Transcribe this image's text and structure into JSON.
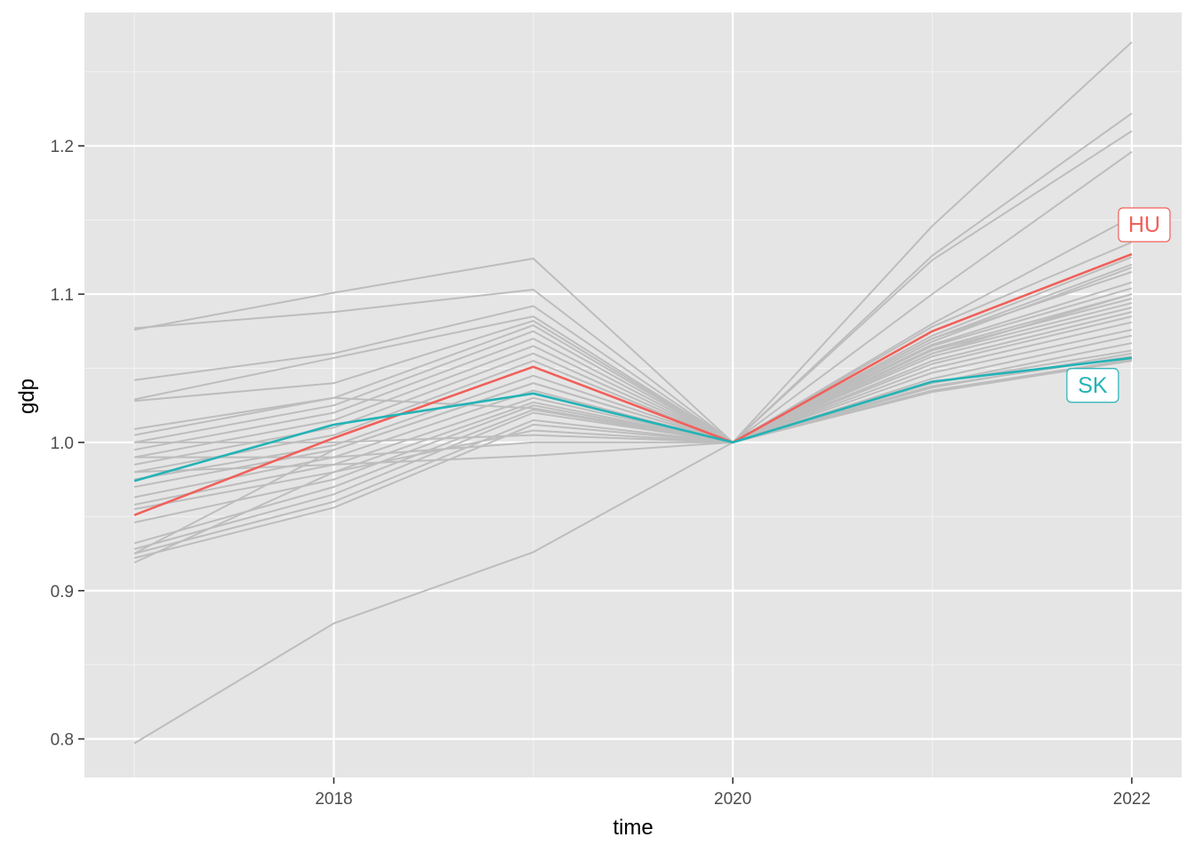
{
  "chart_data": {
    "type": "line",
    "title": "",
    "xlabel": "time",
    "ylabel": "gdp",
    "x": [
      2017,
      2018,
      2019,
      2020,
      2021,
      2022
    ],
    "xlim": [
      2016.75,
      2022.25
    ],
    "ylim": [
      0.774,
      1.29
    ],
    "x_ticks": [
      2018,
      2020,
      2022
    ],
    "x_tick_labels": [
      "2018",
      "2020",
      "2022"
    ],
    "y_ticks": [
      0.8,
      0.9,
      1.0,
      1.1,
      1.2
    ],
    "y_tick_labels": [
      "0.8",
      "0.9",
      "1.0",
      "1.1",
      "1.2"
    ],
    "grid": true,
    "legend": "none",
    "colors": {
      "panel": "#e5e5e5",
      "grid_major": "#ffffff",
      "grid_minor": "#f2f2f2",
      "background_series": "#bdbdbd",
      "HU": "#f0605a",
      "SK": "#23b3b6"
    },
    "highlight_series": [
      {
        "name": "HU",
        "color": "#f0605a",
        "values": [
          0.951,
          1.003,
          1.051,
          1.0,
          1.075,
          1.127
        ]
      },
      {
        "name": "SK",
        "color": "#23b3b6",
        "values": [
          0.974,
          1.012,
          1.033,
          1.0,
          1.041,
          1.057
        ]
      }
    ],
    "series": [
      {
        "values": [
          0.797,
          0.878,
          0.926,
          1.0,
          1.146,
          1.27
        ]
      },
      {
        "values": [
          1.076,
          1.101,
          1.124,
          1.0,
          1.126,
          1.222
        ]
      },
      {
        "values": [
          1.077,
          1.088,
          1.103,
          1.0,
          1.123,
          1.21
        ]
      },
      {
        "values": [
          1.042,
          1.06,
          1.092,
          1.0,
          1.1,
          1.196
        ]
      },
      {
        "values": [
          1.029,
          1.057,
          1.085,
          1.0,
          1.08,
          1.152
        ]
      },
      {
        "values": [
          1.028,
          1.04,
          1.082,
          1.0,
          1.078,
          1.135
        ]
      },
      {
        "values": [
          1.009,
          1.03,
          1.079,
          1.0,
          1.072,
          1.125
        ]
      },
      {
        "values": [
          1.0,
          1.025,
          1.075,
          1.0,
          1.07,
          1.12
        ]
      },
      {
        "values": [
          0.995,
          1.02,
          1.07,
          1.0,
          1.068,
          1.118
        ]
      },
      {
        "values": [
          0.99,
          1.015,
          1.065,
          1.0,
          1.066,
          1.108
        ]
      },
      {
        "values": [
          0.985,
          1.01,
          1.06,
          1.0,
          1.065,
          1.104
        ]
      },
      {
        "values": [
          0.98,
          1.005,
          1.055,
          1.0,
          1.063,
          1.1
        ]
      },
      {
        "values": [
          0.975,
          0.998,
          1.045,
          1.0,
          1.062,
          1.097
        ]
      },
      {
        "values": [
          0.97,
          0.995,
          1.04,
          1.0,
          1.06,
          1.094
        ]
      },
      {
        "values": [
          0.963,
          0.99,
          1.035,
          1.0,
          1.058,
          1.091
        ]
      },
      {
        "values": [
          0.958,
          0.985,
          1.03,
          1.0,
          1.055,
          1.088
        ]
      },
      {
        "values": [
          0.955,
          0.98,
          1.027,
          1.0,
          1.053,
          1.085
        ]
      },
      {
        "values": [
          0.946,
          0.975,
          1.025,
          1.0,
          1.05,
          1.081
        ]
      },
      {
        "values": [
          0.932,
          0.97,
          1.022,
          1.0,
          1.047,
          1.076
        ]
      },
      {
        "values": [
          0.928,
          0.965,
          1.02,
          1.0,
          1.043,
          1.072
        ]
      },
      {
        "values": [
          0.925,
          0.96,
          1.015,
          1.0,
          1.04,
          1.067
        ]
      },
      {
        "values": [
          0.922,
          0.956,
          1.012,
          1.0,
          1.037,
          1.06
        ]
      },
      {
        "values": [
          0.919,
          0.98,
          1.008,
          1.0,
          1.035,
          1.056
        ]
      },
      {
        "values": [
          1.0,
          1.0,
          1.005,
          1.0,
          1.034,
          1.055
        ]
      },
      {
        "values": [
          0.99,
          0.99,
          1.0,
          1.0,
          1.038,
          1.058
        ]
      },
      {
        "values": [
          0.98,
          0.985,
          0.991,
          1.0,
          1.04,
          1.062
        ]
      },
      {
        "values": [
          1.005,
          1.03,
          1.023,
          1.0,
          1.06,
          1.1
        ]
      },
      {
        "values": [
          0.925,
          0.995,
          1.04,
          1.0,
          1.07,
          1.115
        ]
      }
    ]
  }
}
